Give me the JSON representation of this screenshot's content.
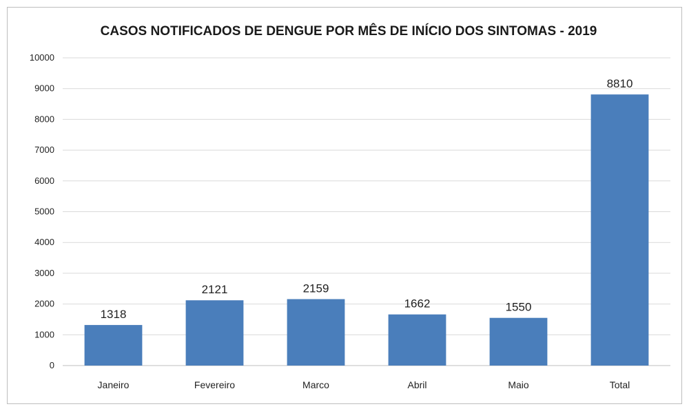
{
  "chart_data": {
    "type": "bar",
    "title": "CASOS NOTIFICADOS DE DENGUE POR MÊS DE INÍCIO DOS SINTOMAS - 2019",
    "xlabel": "",
    "ylabel": "",
    "categories": [
      "Janeiro",
      "Fevereiro",
      "Marco",
      "Abril",
      "Maio",
      "Total"
    ],
    "values": [
      1318,
      2121,
      2159,
      1662,
      1550,
      8810
    ],
    "data_labels": [
      "1318",
      "2121",
      "2159",
      "1662",
      "1550",
      "8810"
    ],
    "ylim": [
      0,
      10000
    ],
    "yticks": [
      0,
      1000,
      2000,
      3000,
      4000,
      5000,
      6000,
      7000,
      8000,
      9000,
      10000
    ],
    "ytick_labels": [
      "0",
      "1000",
      "2000",
      "3000",
      "4000",
      "5000",
      "6000",
      "7000",
      "8000",
      "9000",
      "10000"
    ],
    "grid": true,
    "legend": "none",
    "bar_color": "#4a7ebb",
    "grid_color": "#d9d9d9"
  }
}
